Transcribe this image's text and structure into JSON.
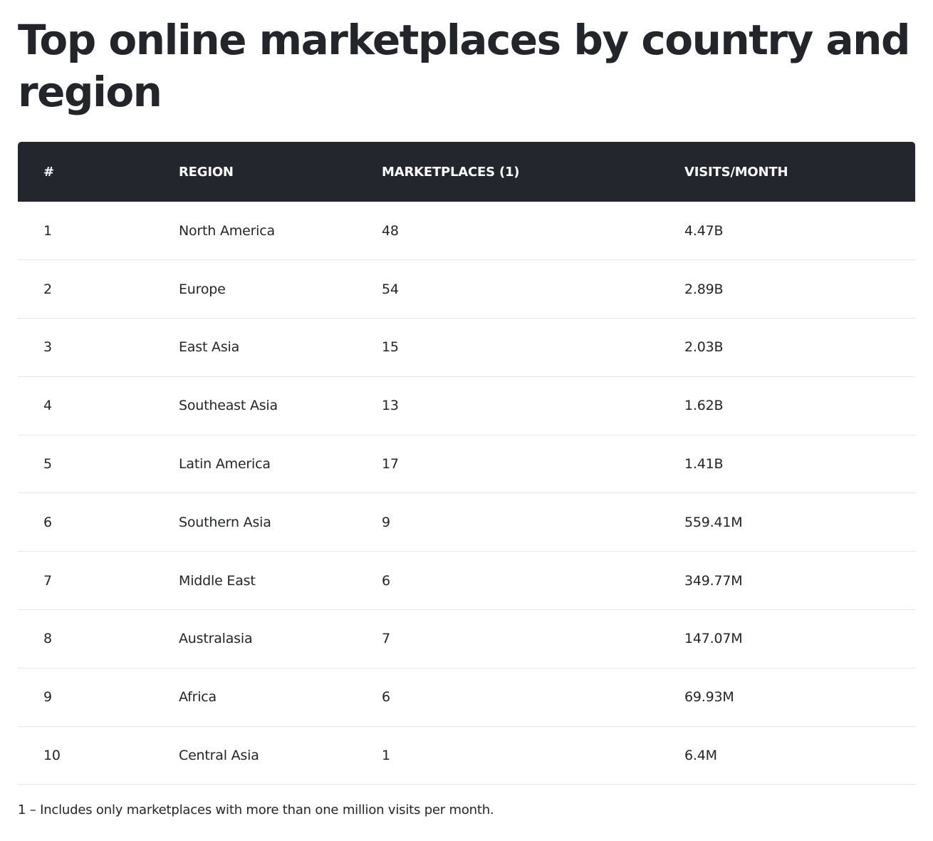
{
  "title": "Top online marketplaces by country and region",
  "table": {
    "headers": [
      "#",
      "REGION",
      "MARKETPLACES (1)",
      "VISITS/MONTH"
    ],
    "rows": [
      [
        "1",
        "North America",
        "48",
        "4.47B"
      ],
      [
        "2",
        "Europe",
        "54",
        "2.89B"
      ],
      [
        "3",
        "East Asia",
        "15",
        "2.03B"
      ],
      [
        "4",
        "Southeast Asia",
        "13",
        "1.62B"
      ],
      [
        "5",
        "Latin America",
        "17",
        "1.41B"
      ],
      [
        "6",
        "Southern Asia",
        "9",
        "559.41M"
      ],
      [
        "7",
        "Middle East",
        "6",
        "349.77M"
      ],
      [
        "8",
        "Australasia",
        "7",
        "147.07M"
      ],
      [
        "9",
        "Africa",
        "6",
        "69.93M"
      ],
      [
        "10",
        "Central Asia",
        "1",
        "6.4M"
      ]
    ]
  },
  "footnote": "1 – Includes only marketplaces with more than one million visits per month."
}
